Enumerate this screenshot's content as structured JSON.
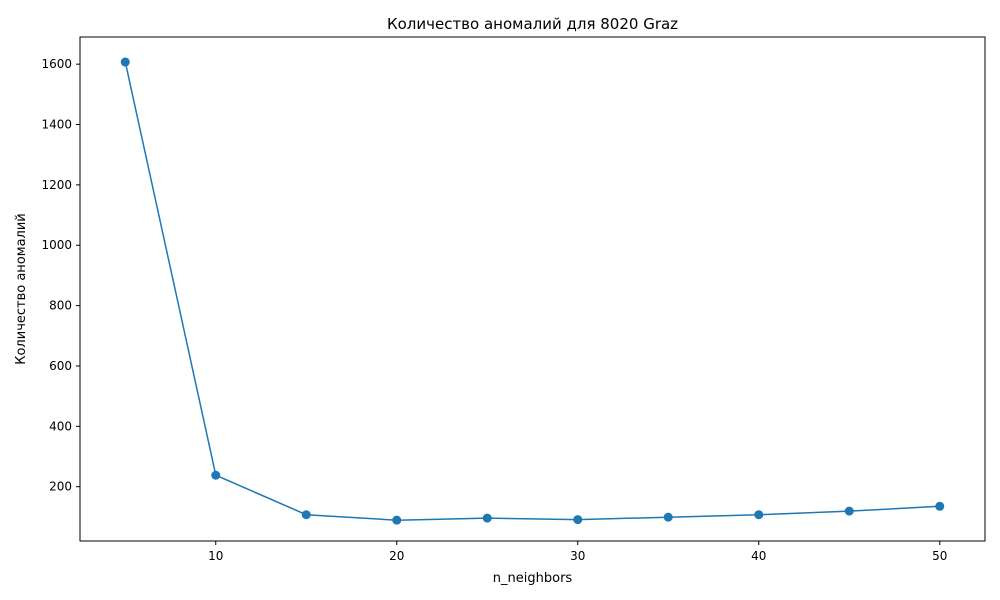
{
  "chart_data": {
    "type": "line",
    "title": "Количество аномалий для 8020 Graz",
    "xlabel": "n_neighbors",
    "ylabel": "Количество аномалий",
    "xlim": [
      2.5,
      52.5
    ],
    "ylim": [
      20,
      1690
    ],
    "x_ticks": [
      10,
      20,
      30,
      40,
      50
    ],
    "y_ticks": [
      200,
      400,
      600,
      800,
      1000,
      1200,
      1400,
      1600
    ],
    "grid": false,
    "series": [
      {
        "color": "#1f77b4",
        "marker": "circle",
        "x": [
          5,
          10,
          15,
          20,
          25,
          30,
          35,
          40,
          45,
          50
        ],
        "y": [
          1607,
          238,
          107,
          89,
          96,
          91,
          99,
          107,
          119,
          135
        ]
      }
    ]
  }
}
